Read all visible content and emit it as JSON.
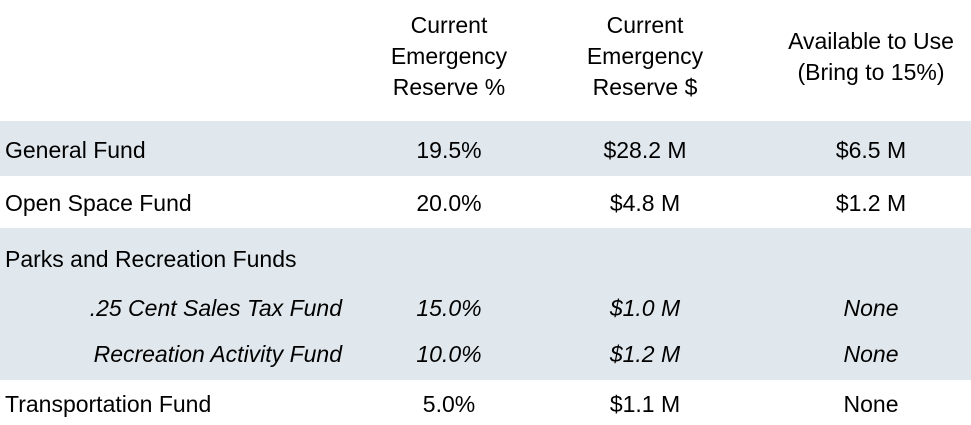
{
  "headers": {
    "col1": "Current\nEmergency\nReserve %",
    "col2": "Current\nEmergency\nReserve $",
    "col3": "Available to Use\n(Bring to 15%)"
  },
  "rows": [
    {
      "label": "General Fund",
      "pct": "19.5%",
      "amount": "$28.2 M",
      "available": "$6.5 M"
    },
    {
      "label": "Open Space Fund",
      "pct": "20.0%",
      "amount": "$4.8 M",
      "available": "$1.2 M"
    },
    {
      "label": "Parks and Recreation Funds",
      "pct": "",
      "amount": "",
      "available": ""
    },
    {
      "label": ".25 Cent Sales Tax Fund",
      "pct": "15.0%",
      "amount": "$1.0 M",
      "available": "None"
    },
    {
      "label": "Recreation Activity Fund",
      "pct": "10.0%",
      "amount": "$1.2 M",
      "available": "None"
    },
    {
      "label": "Transportation Fund",
      "pct": "5.0%",
      "amount": "$1.1 M",
      "available": "None"
    }
  ],
  "colors": {
    "band": "#e1e8ed",
    "text": "#000000"
  }
}
